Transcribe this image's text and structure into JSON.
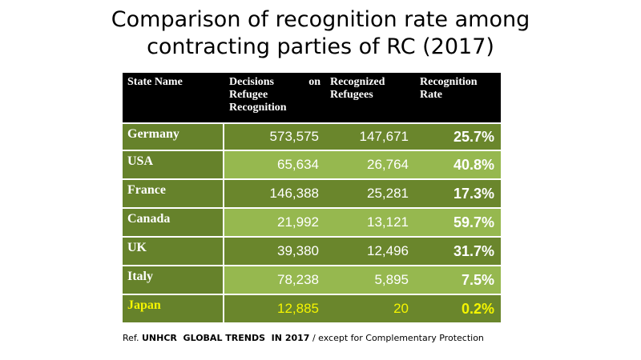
{
  "title": {
    "line1": "Comparison of recognition rate among",
    "line2": "contracting parties of RC (2017)"
  },
  "table": {
    "headers": [
      "State Name",
      "Decisions on Refugee Recognition",
      "Recognized Refugees",
      "Recognition Rate"
    ],
    "rows": [
      {
        "state": "Germany",
        "decisions": "573,575",
        "recognized": "147,671",
        "rate": "25.7%"
      },
      {
        "state": "USA",
        "decisions": "65,634",
        "recognized": "26,764",
        "rate": "40.8%"
      },
      {
        "state": "France",
        "decisions": "146,388",
        "recognized": "25,281",
        "rate": "17.3%"
      },
      {
        "state": "Canada",
        "decisions": "21,992",
        "recognized": "13,121",
        "rate": "59.7%"
      },
      {
        "state": "UK",
        "decisions": "39,380",
        "recognized": "12,496",
        "rate": "31.7%"
      },
      {
        "state": "Italy",
        "decisions": "78,238",
        "recognized": "5,895",
        "rate": "7.5%"
      },
      {
        "state": "Japan",
        "decisions": "12,885",
        "recognized": "20",
        "rate": "0.2%"
      }
    ]
  },
  "footer": {
    "prefix": "Ref.",
    "source": "UNHCR  GLOBAL TRENDS  IN 2017",
    "separator": "/",
    "note": "except for Complementary Protection"
  },
  "colors": {
    "header_bg": "#000000",
    "state_col_bg": "#66822b",
    "dark_row": "#6a862c",
    "light_row": "#96b84f",
    "highlight_text": "#f5f500"
  }
}
